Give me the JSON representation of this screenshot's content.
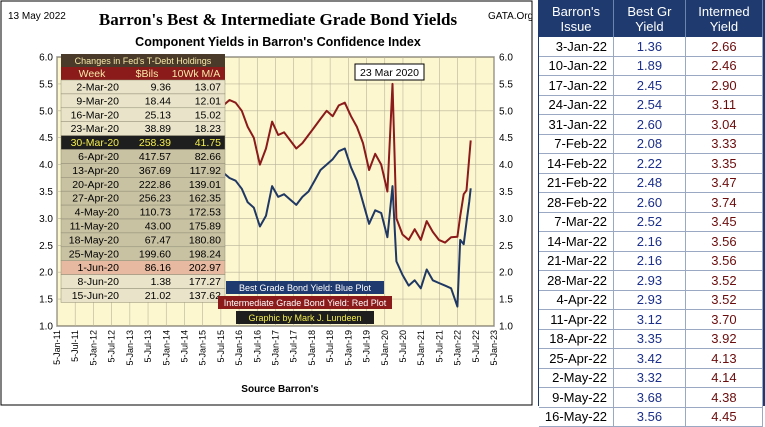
{
  "header": {
    "date_label": "13 May 2022",
    "source_tag": "GATA.Org",
    "title": "Barron's Best & Intermediate Grade Bond Yields",
    "subtitle": "Component Yields in Barron's Confidence Index",
    "annotation_date": "23 Mar 2020",
    "source_note": "Source Barron's"
  },
  "chart_data": {
    "type": "line",
    "title": "Barron's Best & Intermediate Grade Bond Yields",
    "subtitle": "Component Yields in Barron's Confidence Index",
    "xlabel": "Source Barron's",
    "ylabel": "",
    "ylim": [
      1.0,
      6.0
    ],
    "y_ticks": [
      "1.0",
      "1.5",
      "2.0",
      "2.5",
      "3.0",
      "3.5",
      "4.0",
      "4.5",
      "5.0",
      "5.5",
      "6.0"
    ],
    "x_ticks": [
      "5-Jan-11",
      "5-Jul-11",
      "5-Jan-12",
      "5-Jul-12",
      "5-Jan-13",
      "5-Jul-13",
      "5-Jan-14",
      "5-Jul-14",
      "5-Jan-15",
      "5-Jul-15",
      "5-Jan-16",
      "5-Jul-16",
      "5-Jan-17",
      "5-Jul-17",
      "5-Jan-18",
      "5-Jul-18",
      "5-Jan-19",
      "5-Jul-19",
      "5-Jan-20",
      "5-Jul-20",
      "5-Jan-21",
      "5-Jul-21",
      "5-Jan-22",
      "5-Jul-22",
      "5-Jan-23"
    ],
    "x_range": [
      "2011-01-05",
      "2023-01-05"
    ],
    "grid": true,
    "series": [
      {
        "name": "Best Grade Bond Yield: Blue Plot",
        "color": "#1f3864",
        "x": [
          "2015-01-05",
          "2015-02-15",
          "2015-04-01",
          "2015-06-01",
          "2015-08-01",
          "2015-10-01",
          "2015-12-01",
          "2016-02-01",
          "2016-04-01",
          "2016-06-01",
          "2016-08-01",
          "2016-10-01",
          "2016-12-01",
          "2017-02-01",
          "2017-04-01",
          "2017-06-01",
          "2017-08-01",
          "2017-10-01",
          "2017-12-01",
          "2018-02-01",
          "2018-04-01",
          "2018-06-01",
          "2018-08-01",
          "2018-10-01",
          "2018-12-01",
          "2019-02-01",
          "2019-04-01",
          "2019-06-01",
          "2019-08-01",
          "2019-10-01",
          "2019-12-01",
          "2020-02-01",
          "2020-03-23",
          "2020-05-01",
          "2020-07-01",
          "2020-09-01",
          "2020-11-01",
          "2021-01-01",
          "2021-03-01",
          "2021-05-01",
          "2021-07-01",
          "2021-09-01",
          "2021-11-01",
          "2022-01-03",
          "2022-01-31",
          "2022-03-07",
          "2022-04-04",
          "2022-05-02",
          "2022-05-16"
        ],
        "y": [
          3.9,
          3.55,
          3.75,
          3.8,
          3.85,
          3.75,
          3.7,
          3.55,
          3.3,
          3.2,
          2.85,
          3.05,
          3.6,
          3.4,
          3.45,
          3.35,
          3.25,
          3.4,
          3.5,
          3.7,
          3.9,
          4.0,
          4.1,
          4.25,
          4.3,
          3.95,
          3.7,
          3.3,
          2.9,
          3.15,
          3.1,
          2.65,
          3.6,
          2.2,
          1.95,
          1.75,
          1.85,
          1.7,
          2.05,
          1.85,
          1.8,
          1.75,
          1.7,
          1.36,
          2.6,
          2.52,
          2.93,
          3.32,
          3.56
        ]
      },
      {
        "name": "Intermediate Grade Bond Yield: Red Plot",
        "color": "#8b1a1a",
        "x": [
          "2015-01-05",
          "2015-02-15",
          "2015-04-01",
          "2015-06-01",
          "2015-08-01",
          "2015-10-01",
          "2015-12-01",
          "2016-02-01",
          "2016-04-01",
          "2016-06-01",
          "2016-08-01",
          "2016-10-01",
          "2016-12-01",
          "2017-02-01",
          "2017-04-01",
          "2017-06-01",
          "2017-08-01",
          "2017-10-01",
          "2017-12-01",
          "2018-02-01",
          "2018-04-01",
          "2018-06-01",
          "2018-08-01",
          "2018-10-01",
          "2018-12-01",
          "2019-02-01",
          "2019-04-01",
          "2019-06-01",
          "2019-08-01",
          "2019-10-01",
          "2019-12-01",
          "2020-02-01",
          "2020-03-23",
          "2020-05-01",
          "2020-07-01",
          "2020-09-01",
          "2020-11-01",
          "2021-01-01",
          "2021-03-01",
          "2021-05-01",
          "2021-07-01",
          "2021-09-01",
          "2021-11-01",
          "2022-01-03",
          "2022-01-31",
          "2022-03-07",
          "2022-04-04",
          "2022-05-02",
          "2022-05-16"
        ],
        "y": [
          4.85,
          4.6,
          4.85,
          5.05,
          5.1,
          5.2,
          5.15,
          5.0,
          4.7,
          4.5,
          4.0,
          4.3,
          4.8,
          4.55,
          4.6,
          4.45,
          4.3,
          4.4,
          4.55,
          4.7,
          4.85,
          5.0,
          4.9,
          5.1,
          5.15,
          4.9,
          4.7,
          4.4,
          3.9,
          4.2,
          4.0,
          3.5,
          5.5,
          3.0,
          2.7,
          2.6,
          2.8,
          2.6,
          2.95,
          2.75,
          2.6,
          2.55,
          2.65,
          2.66,
          3.04,
          3.45,
          3.52,
          4.14,
          4.45
        ]
      }
    ]
  },
  "legend": {
    "best_label": "Best Grade Bond Yield: Blue Plot",
    "intermed_label": "Intermediate Grade Bond Yield: Red Plot",
    "credit": "Graphic by Mark J. Lundeen"
  },
  "fed_table": {
    "title": "Changes in Fed's T-Debt Holdings",
    "headers": [
      "Week",
      "$Bils",
      "10Wk M/A"
    ],
    "rows": [
      [
        "2-Mar-20",
        "9.36",
        "13.07"
      ],
      [
        "9-Mar-20",
        "18.44",
        "12.01"
      ],
      [
        "16-Mar-20",
        "25.13",
        "15.02"
      ],
      [
        "23-Mar-20",
        "38.89",
        "18.23"
      ],
      [
        "30-Mar-20",
        "258.39",
        "41.75"
      ],
      [
        "6-Apr-20",
        "417.57",
        "82.66"
      ],
      [
        "13-Apr-20",
        "367.69",
        "117.92"
      ],
      [
        "20-Apr-20",
        "222.86",
        "139.01"
      ],
      [
        "27-Apr-20",
        "256.23",
        "162.35"
      ],
      [
        "4-May-20",
        "110.73",
        "172.53"
      ],
      [
        "11-May-20",
        "43.00",
        "175.89"
      ],
      [
        "18-May-20",
        "67.47",
        "180.80"
      ],
      [
        "25-May-20",
        "199.60",
        "198.24"
      ],
      [
        "1-Jun-20",
        "86.16",
        "202.97"
      ],
      [
        "8-Jun-20",
        "1.38",
        "177.27"
      ],
      [
        "15-Jun-20",
        "21.02",
        "137.62"
      ]
    ]
  },
  "yield_table": {
    "headers": [
      [
        "Barron's",
        "Issue"
      ],
      [
        "Best Gr",
        "Yield"
      ],
      [
        "Intermed",
        "Yield"
      ]
    ],
    "rows": [
      [
        "3-Jan-22",
        "1.36",
        "2.66"
      ],
      [
        "10-Jan-22",
        "1.89",
        "2.46"
      ],
      [
        "17-Jan-22",
        "2.45",
        "2.90"
      ],
      [
        "24-Jan-22",
        "2.54",
        "3.11"
      ],
      [
        "31-Jan-22",
        "2.60",
        "3.04"
      ],
      [
        "7-Feb-22",
        "2.08",
        "3.33"
      ],
      [
        "14-Feb-22",
        "2.22",
        "3.35"
      ],
      [
        "21-Feb-22",
        "2.48",
        "3.47"
      ],
      [
        "28-Feb-22",
        "2.60",
        "3.74"
      ],
      [
        "7-Mar-22",
        "2.52",
        "3.45"
      ],
      [
        "14-Mar-22",
        "2.16",
        "3.56"
      ],
      [
        "21-Mar-22",
        "2.16",
        "3.56"
      ],
      [
        "28-Mar-22",
        "2.93",
        "3.52"
      ],
      [
        "4-Apr-22",
        "2.93",
        "3.52"
      ],
      [
        "11-Apr-22",
        "3.12",
        "3.70"
      ],
      [
        "18-Apr-22",
        "3.35",
        "3.92"
      ],
      [
        "25-Apr-22",
        "3.42",
        "4.13"
      ],
      [
        "2-May-22",
        "3.32",
        "4.14"
      ],
      [
        "9-May-22",
        "3.68",
        "4.38"
      ],
      [
        "16-May-22",
        "3.56",
        "4.45"
      ]
    ]
  }
}
